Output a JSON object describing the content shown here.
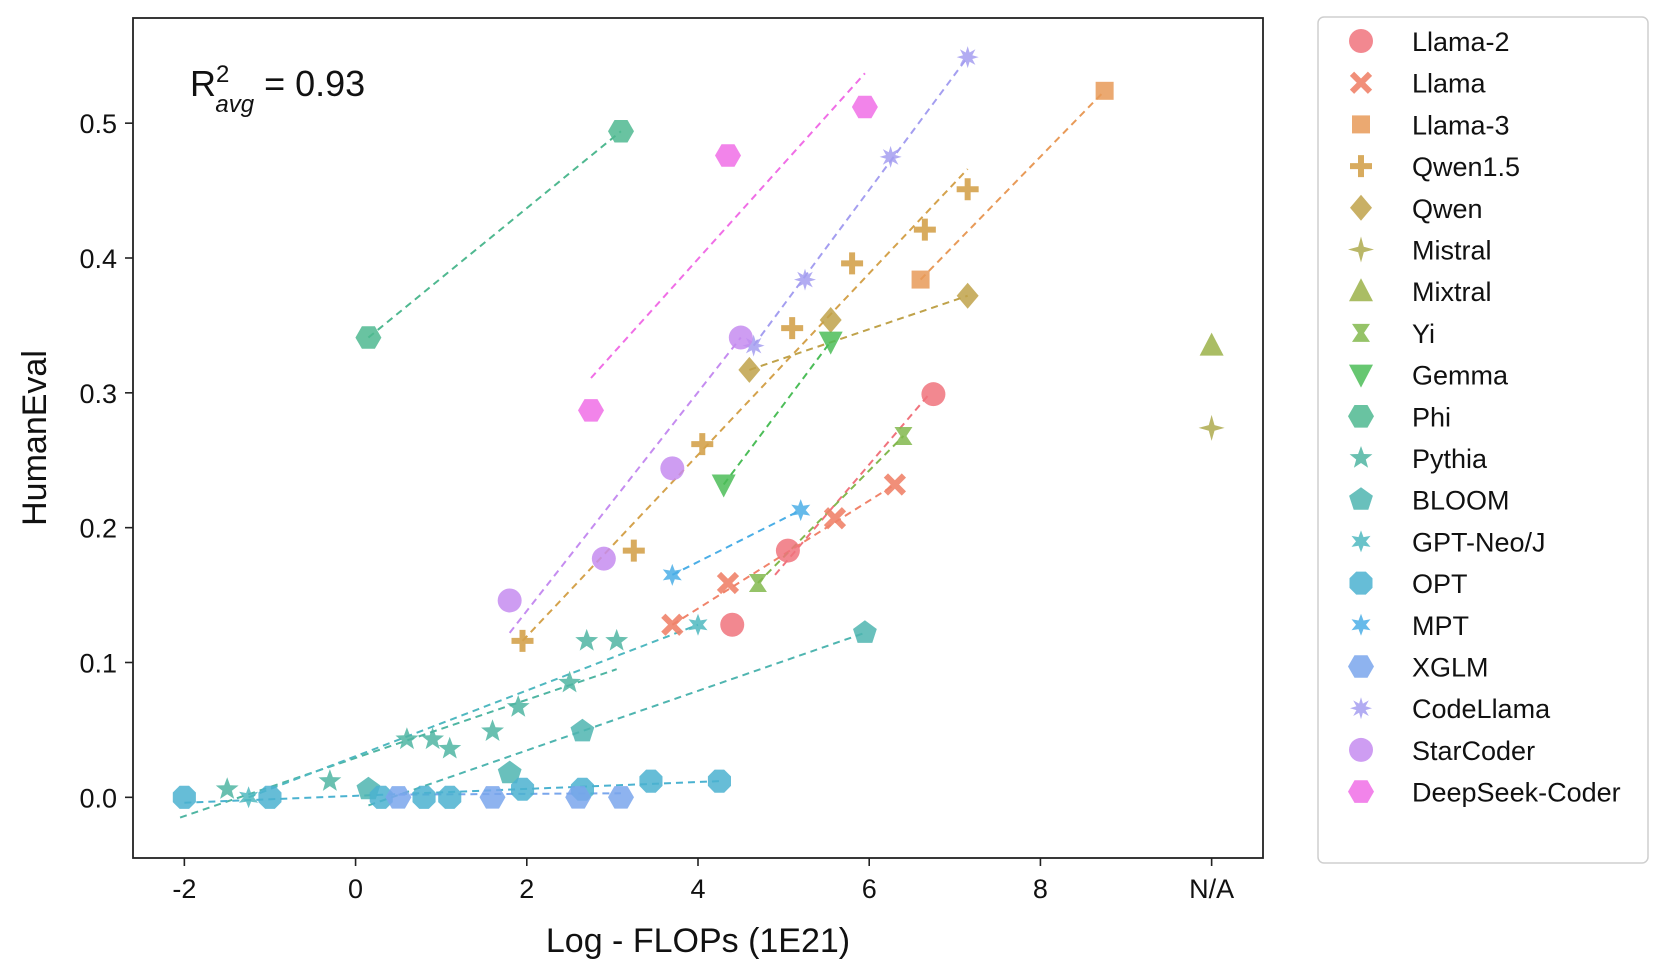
{
  "chart_data": {
    "type": "scatter",
    "xlabel": "Log - FLOPs (1E21)",
    "ylabel": "HumanEval",
    "xlim": [
      -2.6,
      10.6
    ],
    "ylim": [
      -0.045,
      0.578
    ],
    "xticks": [
      -2,
      0,
      2,
      4,
      6,
      8,
      10
    ],
    "xtick_labels": [
      "-2",
      "0",
      "2",
      "4",
      "6",
      "8",
      "N/A"
    ],
    "yticks": [
      0.0,
      0.1,
      0.2,
      0.3,
      0.4,
      0.5
    ],
    "ytick_labels": [
      "0.0",
      "0.1",
      "0.2",
      "0.3",
      "0.4",
      "0.5"
    ],
    "annotation": {
      "base": "R",
      "sup": "2",
      "sub": "avg",
      "rest": " = 0.93"
    },
    "legend_position": "outside-right",
    "series": [
      {
        "name": "Llama-2",
        "color": "#f0737d",
        "marker": "circle",
        "points": [
          [
            4.4,
            0.128
          ],
          [
            5.05,
            0.183
          ],
          [
            6.75,
            0.299
          ]
        ],
        "fit": [
          [
            4.9,
            0.165
          ],
          [
            6.7,
            0.299
          ]
        ]
      },
      {
        "name": "Llama",
        "color": "#f0836a",
        "marker": "x",
        "points": [
          [
            3.7,
            0.128
          ],
          [
            4.35,
            0.159
          ],
          [
            5.6,
            0.207
          ],
          [
            6.3,
            0.232
          ]
        ],
        "fit": [
          [
            3.7,
            0.128
          ],
          [
            6.3,
            0.232
          ]
        ]
      },
      {
        "name": "Llama-3",
        "color": "#e89a58",
        "marker": "square",
        "points": [
          [
            6.6,
            0.384
          ],
          [
            8.75,
            0.524
          ]
        ],
        "fit": [
          [
            6.6,
            0.384
          ],
          [
            8.75,
            0.524
          ]
        ]
      },
      {
        "name": "Qwen1.5",
        "color": "#d4a24c",
        "marker": "plus",
        "points": [
          [
            1.95,
            0.116
          ],
          [
            3.25,
            0.183
          ],
          [
            4.05,
            0.262
          ],
          [
            5.1,
            0.348
          ],
          [
            5.8,
            0.396
          ],
          [
            6.65,
            0.421
          ],
          [
            7.15,
            0.451
          ]
        ],
        "fit": [
          [
            1.95,
            0.116
          ],
          [
            7.15,
            0.466
          ]
        ]
      },
      {
        "name": "Qwen",
        "color": "#bfa24a",
        "marker": "diamond",
        "points": [
          [
            4.6,
            0.317
          ],
          [
            5.55,
            0.354
          ],
          [
            7.15,
            0.372
          ]
        ],
        "fit": [
          [
            4.6,
            0.317
          ],
          [
            7.15,
            0.372
          ]
        ]
      },
      {
        "name": "Mistral",
        "color": "#aeaa4e",
        "marker": "star4",
        "points": [
          [
            10.0,
            0.274
          ]
        ],
        "fit": []
      },
      {
        "name": "Mixtral",
        "color": "#9bb149",
        "marker": "triangle-up",
        "points": [
          [
            10.0,
            0.335
          ]
        ],
        "fit": []
      },
      {
        "name": "Yi",
        "color": "#82b84e",
        "marker": "bowtie",
        "points": [
          [
            4.7,
            0.159
          ],
          [
            6.4,
            0.268
          ]
        ],
        "fit": [
          [
            4.7,
            0.159
          ],
          [
            6.4,
            0.268
          ]
        ]
      },
      {
        "name": "Gemma",
        "color": "#4cbd58",
        "marker": "triangle-down",
        "points": [
          [
            4.3,
            0.232
          ],
          [
            5.55,
            0.338
          ]
        ],
        "fit": [
          [
            4.3,
            0.232
          ],
          [
            5.55,
            0.338
          ]
        ]
      },
      {
        "name": "Phi",
        "color": "#4fb890",
        "marker": "hexagon",
        "points": [
          [
            0.15,
            0.341
          ],
          [
            3.1,
            0.494
          ]
        ],
        "fit": [
          [
            0.15,
            0.341
          ],
          [
            3.1,
            0.494
          ]
        ]
      },
      {
        "name": "Pythia",
        "color": "#4fb5a2",
        "marker": "star5",
        "points": [
          [
            -1.5,
            0.006
          ],
          [
            -0.3,
            0.012
          ],
          [
            0.6,
            0.043
          ],
          [
            0.9,
            0.043
          ],
          [
            1.1,
            0.036
          ],
          [
            1.6,
            0.049
          ],
          [
            1.9,
            0.067
          ],
          [
            2.5,
            0.085
          ],
          [
            2.7,
            0.116
          ],
          [
            3.05,
            0.116
          ]
        ],
        "fit": [
          [
            -2.05,
            -0.015
          ],
          [
            3.05,
            0.095
          ]
        ]
      },
      {
        "name": "BLOOM",
        "color": "#4fb5b0",
        "marker": "pentagon",
        "points": [
          [
            0.15,
            0.006
          ],
          [
            1.8,
            0.018
          ],
          [
            2.65,
            0.049
          ],
          [
            5.95,
            0.122
          ]
        ],
        "fit": [
          [
            0.15,
            -0.006
          ],
          [
            5.95,
            0.122
          ]
        ]
      },
      {
        "name": "GPT-Neo/J",
        "color": "#4fb8c0",
        "marker": "star6",
        "points": [
          [
            -1.25,
            0.0
          ],
          [
            4.0,
            0.128
          ]
        ],
        "fit": [
          [
            -1.25,
            0.0
          ],
          [
            4.0,
            0.128
          ]
        ]
      },
      {
        "name": "OPT",
        "color": "#4bb2d0",
        "marker": "octagon",
        "points": [
          [
            -2.0,
            0.0
          ],
          [
            -1.0,
            0.0
          ],
          [
            0.3,
            0.0
          ],
          [
            0.8,
            0.0
          ],
          [
            1.1,
            0.0
          ],
          [
            1.95,
            0.006
          ],
          [
            2.65,
            0.006
          ],
          [
            3.45,
            0.012
          ],
          [
            4.25,
            0.012
          ]
        ],
        "fit": [
          [
            -2.0,
            -0.004
          ],
          [
            4.25,
            0.012
          ]
        ]
      },
      {
        "name": "MPT",
        "color": "#4baee6",
        "marker": "star6",
        "points": [
          [
            3.7,
            0.165
          ],
          [
            5.2,
            0.213
          ]
        ],
        "fit": [
          [
            3.7,
            0.165
          ],
          [
            5.2,
            0.213
          ]
        ]
      },
      {
        "name": "XGLM",
        "color": "#7aa6ec",
        "marker": "hexagon",
        "points": [
          [
            0.5,
            0.0
          ],
          [
            1.6,
            0.0
          ],
          [
            2.6,
            0.0
          ],
          [
            3.1,
            0.0
          ]
        ],
        "fit": [
          [
            0.5,
            0.002
          ],
          [
            3.1,
            0.003
          ]
        ]
      },
      {
        "name": "CodeLlama",
        "color": "#a49ef0",
        "marker": "star8",
        "points": [
          [
            4.65,
            0.335
          ],
          [
            5.25,
            0.384
          ],
          [
            6.25,
            0.475
          ],
          [
            7.15,
            0.549
          ]
        ],
        "fit": [
          [
            4.65,
            0.335
          ],
          [
            7.15,
            0.549
          ]
        ]
      },
      {
        "name": "StarCoder",
        "color": "#c58cf0",
        "marker": "circle",
        "points": [
          [
            1.8,
            0.146
          ],
          [
            2.9,
            0.177
          ],
          [
            3.7,
            0.244
          ],
          [
            4.5,
            0.341
          ]
        ],
        "fit": [
          [
            1.8,
            0.122
          ],
          [
            4.5,
            0.341
          ]
        ]
      },
      {
        "name": "DeepSeek-Coder",
        "color": "#f06ee6",
        "marker": "hexagon",
        "points": [
          [
            2.75,
            0.287
          ],
          [
            4.35,
            0.476
          ],
          [
            5.95,
            0.512
          ]
        ],
        "fit": [
          [
            2.75,
            0.311
          ],
          [
            5.95,
            0.537
          ]
        ]
      }
    ]
  }
}
